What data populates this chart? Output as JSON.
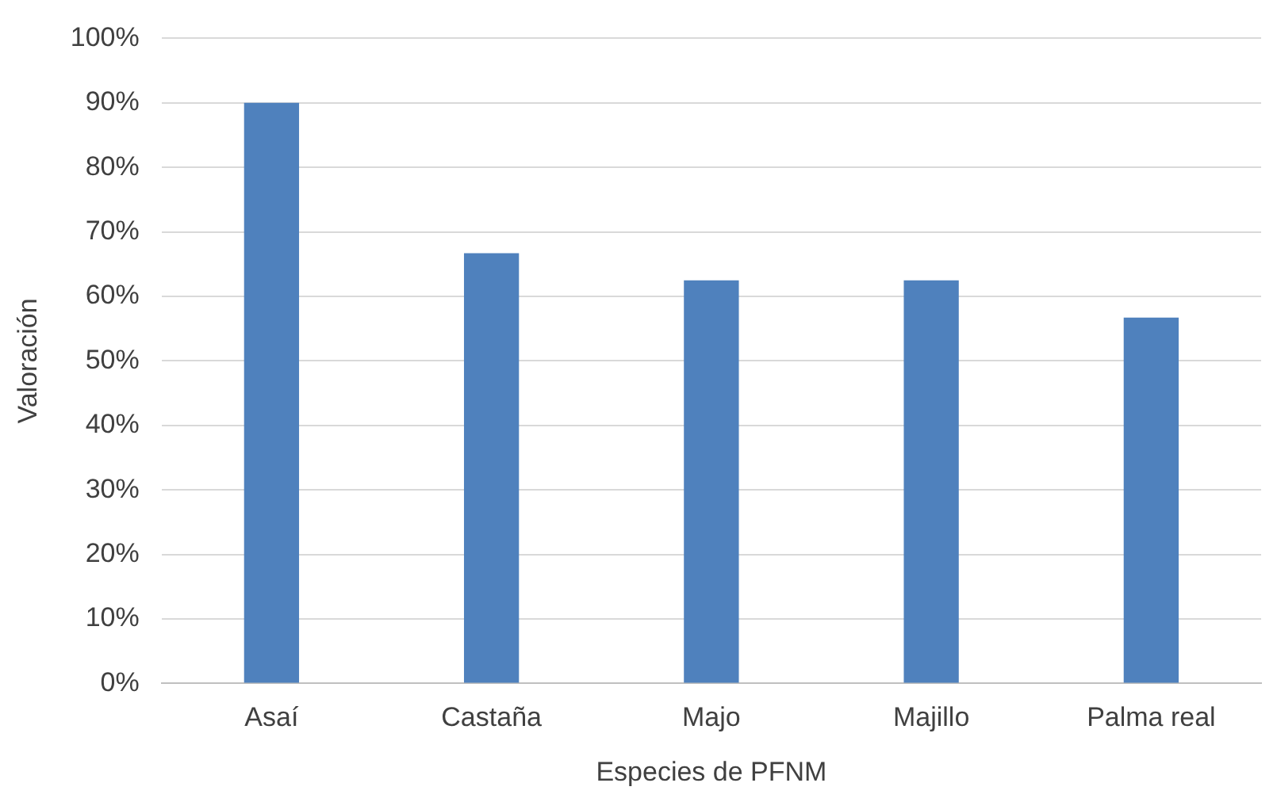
{
  "chart_data": {
    "type": "bar",
    "xlabel": "Especies de PFNM",
    "ylabel": "Valoración",
    "categories": [
      "Asaí",
      "Castaña",
      "Majo",
      "Majillo",
      "Palma real"
    ],
    "values": [
      90,
      66.7,
      62.5,
      62.5,
      56.7
    ],
    "color": "#4f81bd",
    "ylim": [
      0,
      100
    ],
    "yticks": [
      {
        "value": 0,
        "label": "0%"
      },
      {
        "value": 10,
        "label": "10%"
      },
      {
        "value": 20,
        "label": "20%"
      },
      {
        "value": 30,
        "label": "30%"
      },
      {
        "value": 40,
        "label": "40%"
      },
      {
        "value": 50,
        "label": "50%"
      },
      {
        "value": 60,
        "label": "60%"
      },
      {
        "value": 70,
        "label": "70%"
      },
      {
        "value": 80,
        "label": "80%"
      },
      {
        "value": 90,
        "label": "90%"
      },
      {
        "value": 100,
        "label": "100%"
      }
    ],
    "grid": "y",
    "legend": false
  }
}
